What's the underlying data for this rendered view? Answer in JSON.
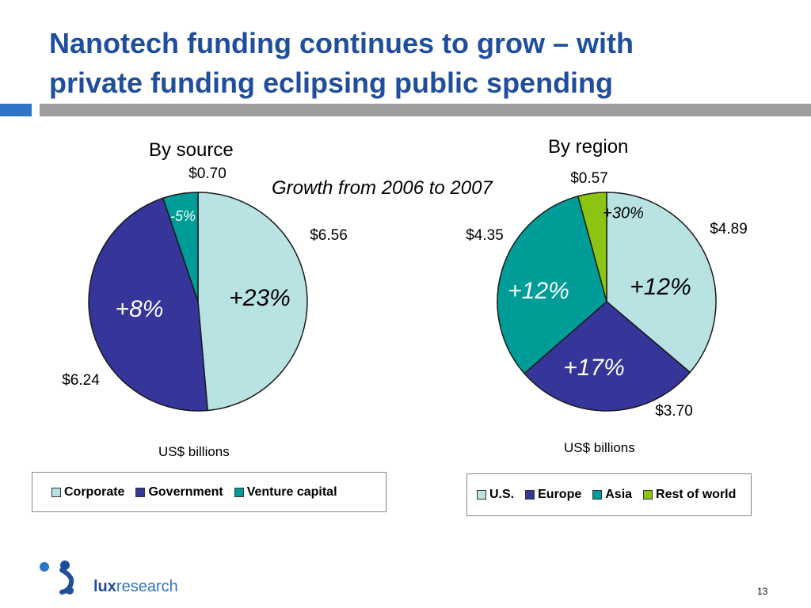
{
  "title": {
    "line1": "Nanotech funding continues to grow – with",
    "line2": "private funding eclipsing public spending"
  },
  "subtitle": "Growth from 2006 to 2007",
  "chart_data": [
    {
      "type": "pie",
      "title": "By source",
      "units": "US$ billions",
      "slices": [
        {
          "name": "Corporate",
          "value": 6.56,
          "value_label": "$6.56",
          "growth_label": "+23%",
          "color": "#b9e2e3"
        },
        {
          "name": "Government",
          "value": 6.24,
          "value_label": "$6.24",
          "growth_label": "+8%",
          "color": "#35359a"
        },
        {
          "name": "Venture capital",
          "value": 0.7,
          "value_label": "$0.70",
          "growth_label": "-5%",
          "color": "#009c97"
        }
      ]
    },
    {
      "type": "pie",
      "title": "By region",
      "units": "US$ billions",
      "slices": [
        {
          "name": "U.S.",
          "value": 4.89,
          "value_label": "$4.89",
          "growth_label": "+12%",
          "color": "#b9e2e3"
        },
        {
          "name": "Europe",
          "value": 3.7,
          "value_label": "$3.70",
          "growth_label": "+17%",
          "color": "#35359a"
        },
        {
          "name": "Asia",
          "value": 4.35,
          "value_label": "$4.35",
          "growth_label": "+12%",
          "color": "#009c97"
        },
        {
          "name": "Rest of world",
          "value": 0.57,
          "value_label": "$0.57",
          "growth_label": "+30%",
          "color": "#8cc414"
        }
      ]
    }
  ],
  "footer": {
    "logo_text_bold": "lux",
    "logo_text_rest": "research",
    "page_number": "13"
  }
}
